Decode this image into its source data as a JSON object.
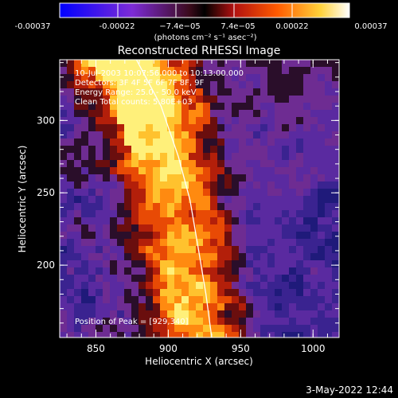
{
  "colorbar": {
    "tick_labels": [
      "-0.00037",
      "-0.00022",
      "−7.4e−05",
      "7.4e−05",
      "0.00022",
      "0.00037"
    ],
    "unit_label": "(photons cm⁻² s⁻¹ asec⁻²)",
    "range": [
      -0.00037,
      0.00037
    ]
  },
  "chart_data": {
    "type": "heatmap",
    "title": "Reconstructed RHESSI Image",
    "xlabel": "Heliocentric X (arcsec)",
    "ylabel": "Heliocentric Y (arcsec)",
    "xlim": [
      825,
      1018
    ],
    "ylim": [
      150,
      342
    ],
    "xticks": [
      850,
      900,
      950,
      1000
    ],
    "yticks": [
      200,
      250,
      300
    ],
    "xtick_labels": [
      "850",
      "900",
      "950",
      "1000"
    ],
    "ytick_labels": [
      "200",
      "250",
      "300"
    ],
    "annotations": [
      "10-Jul-2003 10:07:56.000 to 10:13:00.000",
      "Detectors: 3F 4F 5F 6F 7F 8F, 9F",
      "Energy Range: 25.0 - 50.0 keV",
      "Clean    Total counts: 5.80E+03"
    ],
    "peak_label": "Position of Peak = [929,340]",
    "peak_position": [
      929,
      340
    ],
    "limb_curve": [
      [
        878,
        342
      ],
      [
        895,
        310
      ],
      [
        907,
        275
      ],
      [
        915,
        245
      ],
      [
        921,
        210
      ],
      [
        926,
        180
      ],
      [
        930,
        150
      ]
    ],
    "colormap": "blue-purple-red-yellow-white"
  },
  "footer": {
    "timestamp": "3-May-2022 12:44"
  }
}
